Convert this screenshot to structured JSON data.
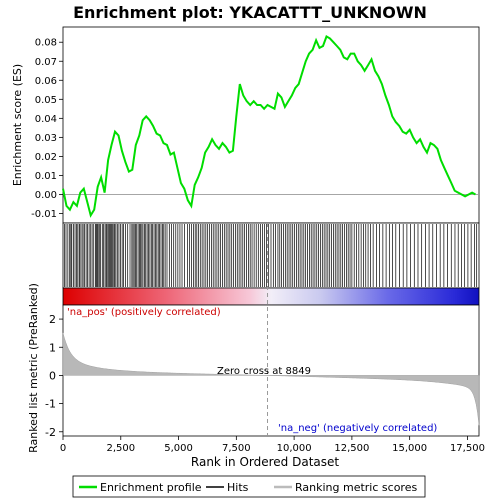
{
  "title": "Enrichment plot: YKACATTT_UNKNOWN",
  "top_panel": {
    "ylabel": "Enrichment score (ES)",
    "yticks": [
      "0.00",
      "0.01",
      "0.02",
      "0.03",
      "0.04",
      "0.05",
      "0.06",
      "0.07",
      "0.08",
      "-0.01"
    ]
  },
  "bottom_panel": {
    "ylabel": "Ranked list metric (PreRanked)",
    "yticks": [
      "2",
      "1",
      "0",
      "-1",
      "-2"
    ],
    "pos_label": "'na_pos' (positively correlated)",
    "neg_label": "'na_neg' (negatively correlated)",
    "zero_cross_label": "Zero cross at 8849"
  },
  "xlabel": "Rank in Ordered Dataset",
  "xticks": [
    "0",
    "2,500",
    "5,000",
    "7,500",
    "10,000",
    "12,500",
    "15,000",
    "17,500"
  ],
  "legend": {
    "items": [
      {
        "label": "Enrichment profile",
        "color": "#00cc00"
      },
      {
        "label": "Hits",
        "color": "#000000"
      },
      {
        "label": "Ranking metric scores",
        "color": "#bbbbbb"
      }
    ]
  },
  "chart_data": {
    "type": "line",
    "n_genes": 18000,
    "zero_cross": 8849,
    "es_ylim": [
      -0.015,
      0.088
    ],
    "es_profile": {
      "x": [
        0,
        150,
        300,
        450,
        600,
        750,
        900,
        1050,
        1200,
        1350,
        1500,
        1650,
        1800,
        1950,
        2100,
        2250,
        2400,
        2550,
        2700,
        2850,
        3000,
        3150,
        3300,
        3450,
        3600,
        3750,
        3900,
        4050,
        4200,
        4350,
        4500,
        4650,
        4800,
        4950,
        5100,
        5250,
        5400,
        5550,
        5700,
        5850,
        6000,
        6150,
        6300,
        6450,
        6600,
        6750,
        6900,
        7050,
        7200,
        7350,
        7500,
        7650,
        7800,
        7950,
        8100,
        8250,
        8400,
        8550,
        8700,
        8850,
        9000,
        9150,
        9300,
        9450,
        9600,
        9750,
        9900,
        10050,
        10200,
        10350,
        10500,
        10650,
        10800,
        10950,
        11100,
        11250,
        11400,
        11550,
        11700,
        11850,
        12000,
        12150,
        12300,
        12450,
        12600,
        12750,
        12900,
        13050,
        13200,
        13350,
        13500,
        13650,
        13800,
        13950,
        14100,
        14250,
        14400,
        14550,
        14700,
        14850,
        15000,
        15150,
        15300,
        15450,
        15600,
        15750,
        15900,
        16050,
        16200,
        16350,
        16500,
        16650,
        16800,
        16950,
        17100,
        17250,
        17400,
        17550,
        17700,
        17850
      ],
      "y": [
        0.003,
        -0.006,
        -0.008,
        -0.004,
        -0.006,
        0.001,
        0.003,
        -0.004,
        -0.011,
        -0.008,
        0.004,
        0.009,
        0.001,
        0.018,
        0.026,
        0.033,
        0.031,
        0.023,
        0.017,
        0.012,
        0.013,
        0.026,
        0.031,
        0.039,
        0.041,
        0.039,
        0.036,
        0.032,
        0.031,
        0.027,
        0.026,
        0.021,
        0.022,
        0.014,
        0.006,
        0.003,
        -0.003,
        -0.006,
        0.005,
        0.009,
        0.014,
        0.022,
        0.025,
        0.029,
        0.026,
        0.024,
        0.027,
        0.025,
        0.022,
        0.023,
        0.041,
        0.058,
        0.052,
        0.049,
        0.047,
        0.049,
        0.047,
        0.047,
        0.045,
        0.047,
        0.046,
        0.045,
        0.053,
        0.051,
        0.046,
        0.049,
        0.052,
        0.056,
        0.058,
        0.064,
        0.07,
        0.074,
        0.076,
        0.081,
        0.077,
        0.078,
        0.083,
        0.082,
        0.08,
        0.078,
        0.076,
        0.072,
        0.071,
        0.074,
        0.074,
        0.07,
        0.068,
        0.065,
        0.068,
        0.071,
        0.065,
        0.062,
        0.058,
        0.052,
        0.047,
        0.041,
        0.038,
        0.036,
        0.033,
        0.032,
        0.034,
        0.03,
        0.027,
        0.029,
        0.025,
        0.022,
        0.027,
        0.026,
        0.024,
        0.018,
        0.014,
        0.01,
        0.006,
        0.002,
        0.001,
        0.0,
        -0.001,
        0.0,
        0.001,
        0.0
      ]
    },
    "hits": [
      60,
      130,
      210,
      290,
      340,
      380,
      450,
      520,
      580,
      640,
      700,
      740,
      820,
      870,
      930,
      1000,
      1060,
      1130,
      1200,
      1260,
      1330,
      1400,
      1440,
      1480,
      1520,
      1570,
      1630,
      1700,
      1760,
      1820,
      1870,
      1910,
      1960,
      2010,
      2060,
      2100,
      2150,
      2200,
      2240,
      2290,
      2350,
      2420,
      2490,
      2560,
      2620,
      2700,
      2800,
      2900,
      2980,
      3030,
      3080,
      3140,
      3190,
      3250,
      3310,
      3360,
      3410,
      3460,
      3520,
      3580,
      3640,
      3700,
      3760,
      3820,
      3880,
      3940,
      4000,
      4060,
      4120,
      4180,
      4240,
      4300,
      4360,
      4420,
      4500,
      4600,
      4700,
      4790,
      4880,
      4970,
      5060,
      5150,
      5260,
      5380,
      5480,
      5560,
      5650,
      5720,
      5790,
      5860,
      5940,
      6020,
      6100,
      6180,
      6260,
      6340,
      6420,
      6500,
      6580,
      6660,
      6740,
      6820,
      6900,
      6980,
      7060,
      7140,
      7220,
      7300,
      7380,
      7460,
      7540,
      7620,
      7700,
      7780,
      7860,
      7940,
      8020,
      8100,
      8180,
      8270,
      8360,
      8450,
      8540,
      8630,
      8720,
      8800,
      8900,
      9000,
      9100,
      9200,
      9300,
      9380,
      9460,
      9540,
      9620,
      9700,
      9780,
      9860,
      9940,
      10020,
      10100,
      10180,
      10260,
      10340,
      10420,
      10500,
      10580,
      10660,
      10740,
      10820,
      10900,
      10980,
      11060,
      11140,
      11220,
      11300,
      11380,
      11460,
      11540,
      11620,
      11700,
      11780,
      11860,
      11940,
      12020,
      12100,
      12180,
      12260,
      12340,
      12420,
      12500,
      12600,
      12700,
      12800,
      12900,
      13000,
      13100,
      13200,
      13300,
      13420,
      13560,
      13700,
      13840,
      13980,
      14120,
      14260,
      14400,
      14560,
      14720,
      14880,
      15040,
      15200,
      15360,
      15520,
      15680,
      15840,
      16000,
      16160,
      16320,
      16480,
      16640,
      16800,
      16960,
      17100,
      17240,
      17380,
      17520,
      17660,
      17800,
      17900
    ]
  }
}
